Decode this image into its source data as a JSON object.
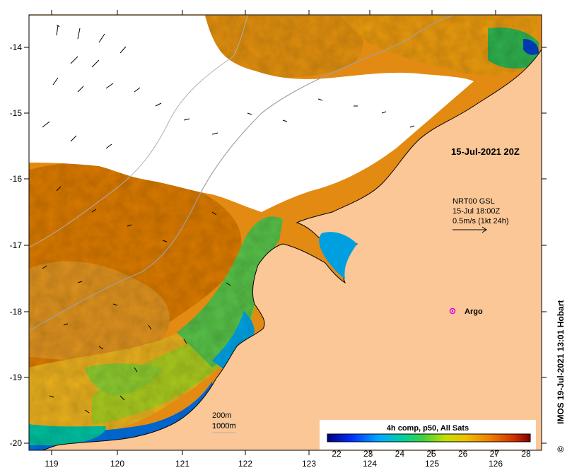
{
  "map": {
    "stamp": "15-Jul-2021 20Z",
    "current_source": "NRT00 GSL",
    "current_time": "15-Jul 18:00Z",
    "current_scale": "0.5m/s (1kt 24h)",
    "argo_label": "Argo",
    "bathy_200": "200m",
    "bathy_1000": "1000m",
    "credit": "IMOS 19-Jul-2021 13:01 Hobart",
    "copyright_symbol": "©",
    "lon_ticks": [
      "119",
      "120",
      "121",
      "122",
      "123",
      "124",
      "125",
      "126"
    ],
    "lat_ticks": [
      "-14",
      "-15",
      "-16",
      "-17",
      "-18",
      "-19",
      "-20"
    ],
    "colors": {
      "land": "#fbc797",
      "cloud": "#ffffff",
      "warm": "#e0800f",
      "argo": "#e000e0"
    }
  },
  "colorbar": {
    "title": "4h comp, p50, All Sats",
    "ticks": [
      "22",
      "23",
      "24",
      "25",
      "26",
      "27",
      "28"
    ],
    "colors": [
      "#000080",
      "#0040ff",
      "#00b0ff",
      "#00d080",
      "#80e020",
      "#f0e000",
      "#f0a000",
      "#e06000",
      "#c02000",
      "#800000"
    ]
  }
}
